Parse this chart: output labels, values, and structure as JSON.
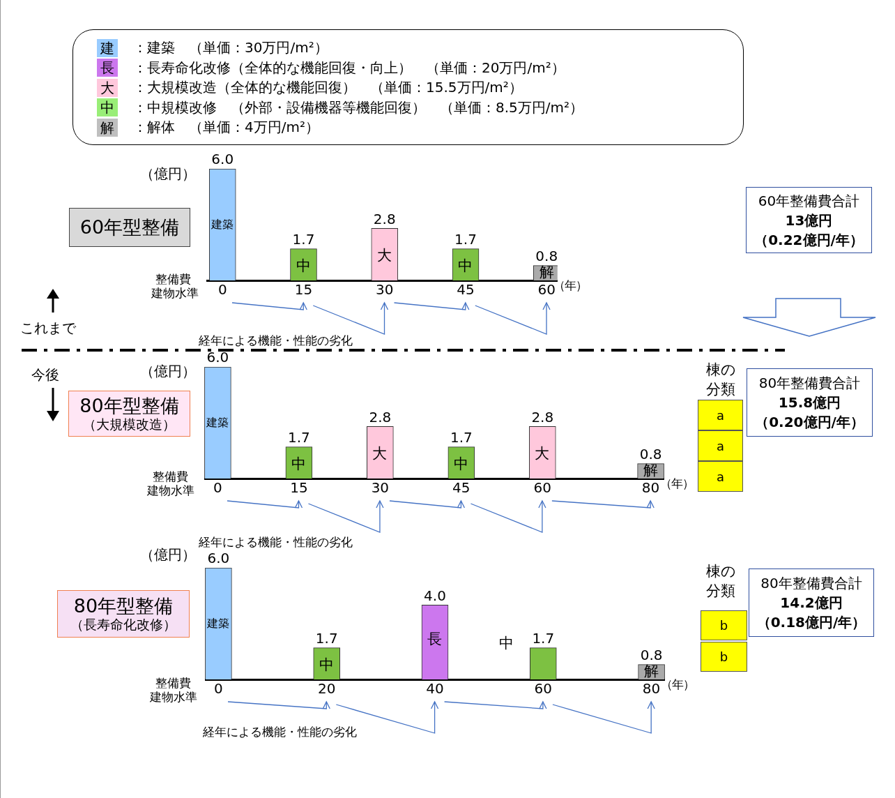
{
  "chart_data": [
    {
      "type": "other",
      "categories": [
        "建",
        "長",
        "大",
        "中",
        "解"
      ],
      "colors": [
        "#99ccff",
        "#cc77ee",
        "#ffc8dc",
        "#99ee77",
        "#bfbfbf"
      ],
      "annotations": [
        "：建築　（単価：30万円/m²）",
        "：長寿命化改修（全体的な機能回復・向上）　（単価：20万円/m²）",
        "：大規模改造（全体的な機能回復）　（単価：15.5万円/m²）",
        "：中規模改修　（外部・設備機器等機能回復）　（単価：8.5万円/m²）",
        "：解体　（単価：4万円/m²）"
      ]
    },
    {
      "type": "bar",
      "title": "60年型整備",
      "ylabel": "（億円）",
      "xlabel": "（年）",
      "x": [
        0,
        15,
        30,
        45,
        60
      ],
      "values": [
        6.0,
        1.7,
        2.8,
        1.7,
        0.8
      ],
      "value_labels": [
        "6.0",
        "1.7",
        "2.8",
        "1.7",
        "0.8"
      ],
      "colors": [
        "#99ccff",
        "#7dc142",
        "#ffc8dc",
        "#7dc142",
        "#aaaaaa"
      ],
      "xlim": [
        -3,
        62
      ],
      "xticks": [
        0,
        15,
        30,
        45,
        60
      ],
      "ylim": [
        0,
        6
      ],
      "tick_labels": "x",
      "annotations": [
        "整備費",
        "建物水準",
        "経年による機能・性能の劣化",
        "60年整備費合計",
        "13億円",
        "（0.22億円/年）",
        "これまで",
        "建築",
        "中",
        "大",
        "中",
        "解"
      ]
    },
    {
      "type": "bar",
      "title": "80年型整備",
      "subtitle": "（大規模改造）",
      "ylabel": "（億円）",
      "xlabel": "（年）",
      "x": [
        0,
        15,
        30,
        45,
        60,
        80
      ],
      "values": [
        6.0,
        1.7,
        2.8,
        1.7,
        2.8,
        0.8
      ],
      "value_labels": [
        "6.0",
        "1.7",
        "2.8",
        "1.7",
        "2.8",
        "0.8"
      ],
      "colors": [
        "#99ccff",
        "#7dc142",
        "#ffc8dc",
        "#7dc142",
        "#ffc8dc",
        "#aaaaaa"
      ],
      "xlim": [
        -2.5,
        82.5
      ],
      "xticks": [
        0,
        15,
        30,
        45,
        60,
        80
      ],
      "ylim": [
        0,
        6
      ],
      "tick_labels": "x",
      "annotations": [
        "整備費",
        "建物水準",
        "経年による機能・性能の劣化",
        "80年整備費合計",
        "15.8億円",
        "（0.20億円/年）",
        "棟の分類",
        "a",
        "a",
        "a",
        "今後",
        "建築",
        "中",
        "大",
        "中",
        "大",
        "解"
      ]
    },
    {
      "type": "bar",
      "title": "80年型整備",
      "subtitle": "（長寿命化改修）",
      "ylabel": "（億円）",
      "xlabel": "（年）",
      "x": [
        0,
        20,
        40,
        60,
        80
      ],
      "values": [
        6.0,
        1.7,
        4.0,
        1.7,
        0.8
      ],
      "value_labels": [
        "6.0",
        "1.7",
        "4.0",
        "1.7",
        "0.8"
      ],
      "colors": [
        "#99ccff",
        "#7dc142",
        "#cc77ee",
        "#7dc142",
        "#aaaaaa"
      ],
      "xlim": [
        -2.5,
        82.5
      ],
      "xticks": [
        0,
        20,
        40,
        60,
        80
      ],
      "ylim": [
        0,
        6
      ],
      "tick_labels": "x",
      "annotations": [
        "整備費",
        "建物水準",
        "経年による機能・性能の劣化",
        "80年整備費合計",
        "14.2億円",
        "（0.18億円/年）",
        "棟の分類",
        "b",
        "b",
        "建築",
        "中",
        "長",
        "中",
        "解"
      ]
    }
  ]
}
